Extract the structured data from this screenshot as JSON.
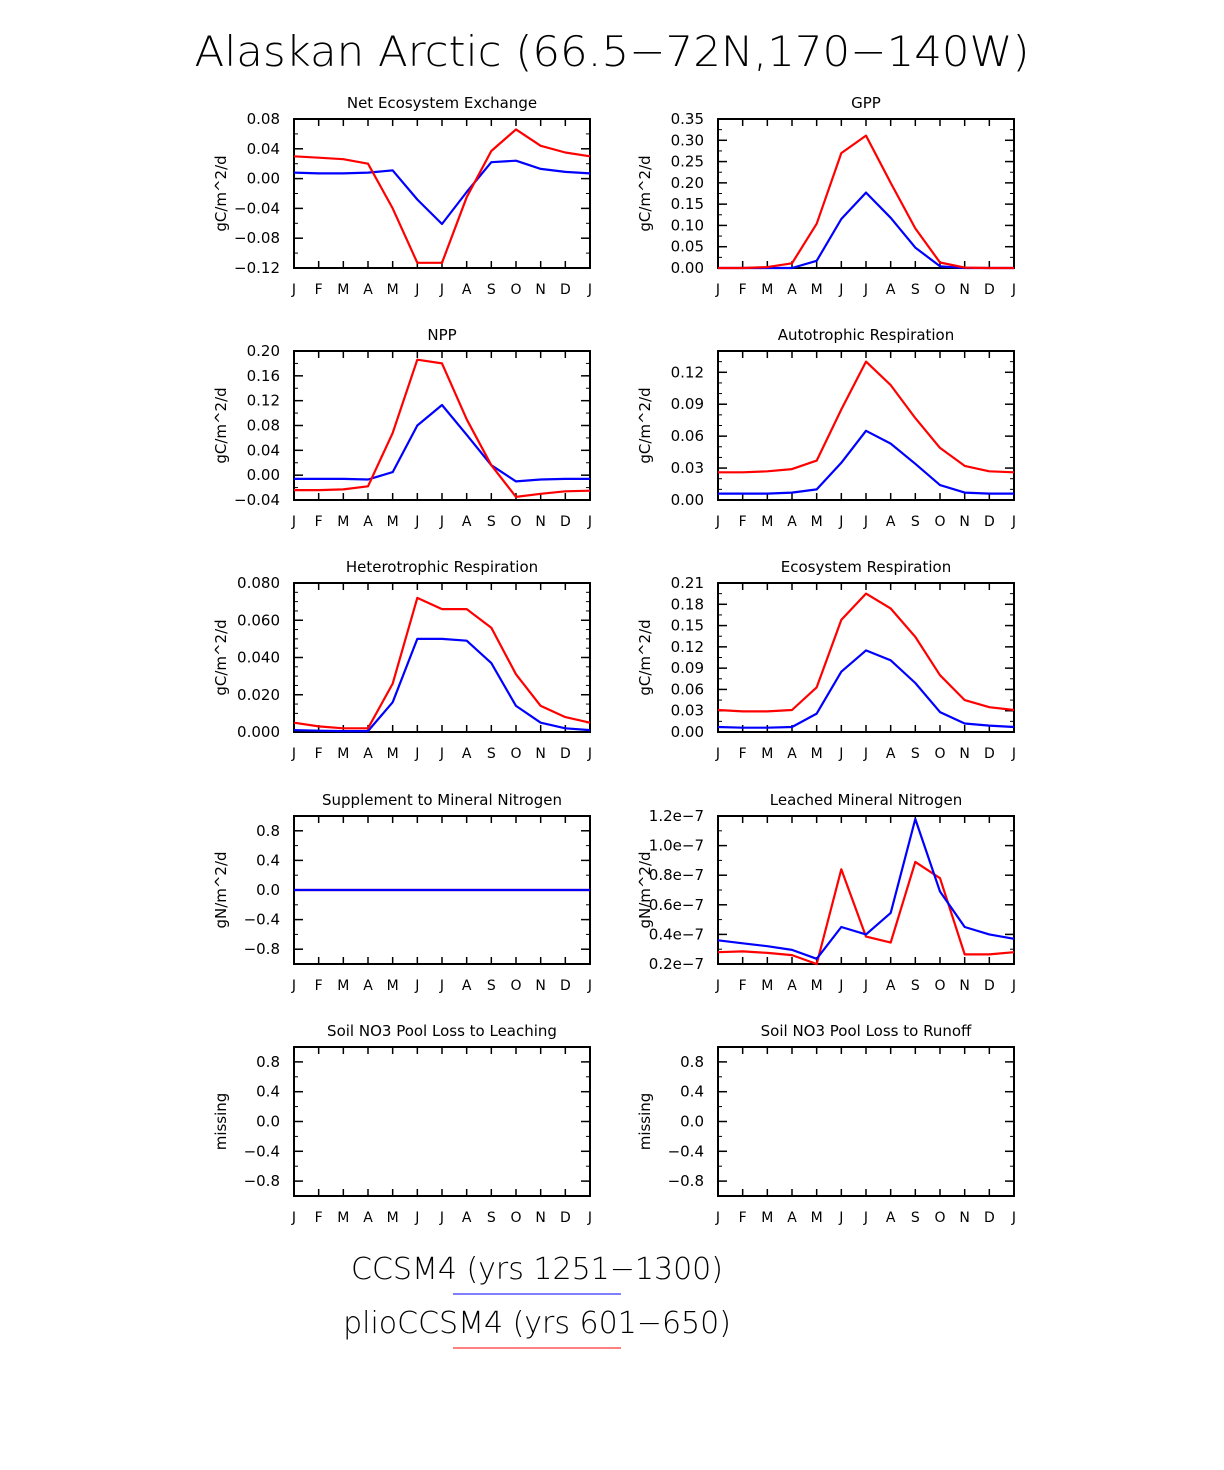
{
  "figure": {
    "title": "Alaskan Arctic (66.5−72N,170−140W)",
    "months": [
      "J",
      "F",
      "M",
      "A",
      "M",
      "J",
      "J",
      "A",
      "S",
      "O",
      "N",
      "D",
      "J"
    ],
    "legend": [
      {
        "label": "CCSM4 (yrs 1251−1300)",
        "color": "#0000ff"
      },
      {
        "label": "plioCCSM4 (yrs 601−650)",
        "color": "#ff0000"
      }
    ]
  },
  "chart_data": [
    {
      "type": "line",
      "title": "Net Ecosystem Exchange",
      "ylabel": "gC/m^2/d",
      "ylim": [
        -0.12,
        0.08
      ],
      "yticks": [
        -0.12,
        -0.08,
        -0.04,
        0.0,
        0.04,
        0.08
      ],
      "yticklabels": [
        "−0.12",
        "−0.08",
        "−0.04",
        "0.00",
        "0.04",
        "0.08"
      ],
      "minor_per_major": 1,
      "series": [
        {
          "color": "#0000ff",
          "values": [
            0.008,
            0.007,
            0.007,
            0.008,
            0.011,
            -0.028,
            -0.061,
            -0.018,
            0.022,
            0.024,
            0.013,
            0.009,
            0.007
          ]
        },
        {
          "color": "#ff0000",
          "values": [
            0.03,
            0.028,
            0.026,
            0.02,
            -0.04,
            -0.113,
            -0.113,
            -0.025,
            0.037,
            0.066,
            0.044,
            0.035,
            0.03
          ]
        }
      ]
    },
    {
      "type": "line",
      "title": "GPP",
      "ylabel": "gC/m^2/d",
      "ylim": [
        0,
        0.35
      ],
      "yticks": [
        0,
        0.05,
        0.1,
        0.15,
        0.2,
        0.25,
        0.3,
        0.35
      ],
      "yticklabels": [
        "0.00",
        "0.05",
        "0.10",
        "0.15",
        "0.20",
        "0.25",
        "0.30",
        "0.35"
      ],
      "minor_per_major": 1,
      "series": [
        {
          "color": "#0000ff",
          "values": [
            0,
            0,
            0,
            0.0,
            0.017,
            0.115,
            0.177,
            0.118,
            0.048,
            0.004,
            0,
            0,
            0
          ]
        },
        {
          "color": "#ff0000",
          "values": [
            0,
            0,
            0.002,
            0.011,
            0.104,
            0.27,
            0.311,
            0.2,
            0.093,
            0.013,
            0.001,
            0,
            0
          ]
        }
      ]
    },
    {
      "type": "line",
      "title": "NPP",
      "ylabel": "gC/m^2/d",
      "ylim": [
        -0.04,
        0.2
      ],
      "yticks": [
        -0.04,
        0.0,
        0.04,
        0.08,
        0.12,
        0.16,
        0.2
      ],
      "yticklabels": [
        "−0.04",
        "0.00",
        "0.04",
        "0.08",
        "0.12",
        "0.16",
        "0.20"
      ],
      "minor_per_major": 1,
      "series": [
        {
          "color": "#0000ff",
          "values": [
            -0.006,
            -0.006,
            -0.006,
            -0.007,
            0.005,
            0.08,
            0.113,
            0.065,
            0.016,
            -0.01,
            -0.007,
            -0.006,
            -0.006
          ]
        },
        {
          "color": "#ff0000",
          "values": [
            -0.024,
            -0.024,
            -0.023,
            -0.018,
            0.068,
            0.186,
            0.18,
            0.09,
            0.016,
            -0.035,
            -0.03,
            -0.026,
            -0.025
          ]
        }
      ]
    },
    {
      "type": "line",
      "title": "Autotrophic Respiration",
      "ylabel": "gC/m^2/d",
      "ylim": [
        0,
        0.14
      ],
      "yticks": [
        0,
        0.03,
        0.06,
        0.09,
        0.12
      ],
      "yticklabels": [
        "0.00",
        "0.03",
        "0.06",
        "0.09",
        "0.12"
      ],
      "minor_per_major": 2,
      "series": [
        {
          "color": "#0000ff",
          "values": [
            0.006,
            0.006,
            0.006,
            0.007,
            0.01,
            0.035,
            0.065,
            0.053,
            0.034,
            0.014,
            0.007,
            0.006,
            0.006
          ]
        },
        {
          "color": "#ff0000",
          "values": [
            0.026,
            0.026,
            0.027,
            0.029,
            0.037,
            0.085,
            0.13,
            0.108,
            0.077,
            0.049,
            0.032,
            0.027,
            0.026
          ]
        }
      ]
    },
    {
      "type": "line",
      "title": "Heterotrophic Respiration",
      "ylabel": "gC/m^2/d",
      "ylim": [
        0,
        0.08
      ],
      "yticks": [
        0,
        0.02,
        0.04,
        0.06,
        0.08
      ],
      "yticklabels": [
        "0.000",
        "0.020",
        "0.040",
        "0.060",
        "0.080"
      ],
      "minor_per_major": 3,
      "series": [
        {
          "color": "#0000ff",
          "values": [
            0.001,
            0.0007,
            0.0005,
            0.0005,
            0.016,
            0.05,
            0.05,
            0.049,
            0.037,
            0.014,
            0.005,
            0.002,
            0.001
          ]
        },
        {
          "color": "#ff0000",
          "values": [
            0.005,
            0.003,
            0.002,
            0.002,
            0.026,
            0.072,
            0.066,
            0.066,
            0.056,
            0.031,
            0.014,
            0.008,
            0.005
          ]
        }
      ]
    },
    {
      "type": "line",
      "title": "Ecosystem Respiration",
      "ylabel": "gC/m^2/d",
      "ylim": [
        0,
        0.21
      ],
      "yticks": [
        0,
        0.03,
        0.06,
        0.09,
        0.12,
        0.15,
        0.18,
        0.21
      ],
      "yticklabels": [
        "0.00",
        "0.03",
        "0.06",
        "0.09",
        "0.12",
        "0.15",
        "0.18",
        "0.21"
      ],
      "minor_per_major": 1,
      "series": [
        {
          "color": "#0000ff",
          "values": [
            0.007,
            0.006,
            0.006,
            0.007,
            0.026,
            0.085,
            0.115,
            0.101,
            0.069,
            0.028,
            0.012,
            0.009,
            0.007
          ]
        },
        {
          "color": "#ff0000",
          "values": [
            0.031,
            0.029,
            0.029,
            0.031,
            0.063,
            0.158,
            0.195,
            0.174,
            0.134,
            0.08,
            0.045,
            0.035,
            0.031
          ]
        }
      ]
    },
    {
      "type": "line",
      "title": "Supplement to Mineral Nitrogen",
      "ylabel": "gN/m^2/d",
      "ylim": [
        -1,
        1
      ],
      "yticks": [
        -0.8,
        -0.4,
        0.0,
        0.4,
        0.8
      ],
      "yticklabels": [
        "−0.8",
        "−0.4",
        "0.0",
        "0.4",
        "0.8"
      ],
      "minor_per_major": 1,
      "series": [
        {
          "color": "#ff0000",
          "values": [
            0,
            0,
            0,
            0,
            0,
            0,
            0,
            0,
            0,
            0,
            0,
            0,
            0
          ]
        },
        {
          "color": "#0000ff",
          "values": [
            0,
            0,
            0,
            0,
            0,
            0,
            0,
            0,
            0,
            0,
            0,
            0,
            0
          ]
        }
      ]
    },
    {
      "type": "line",
      "title": "Leached Mineral Nitrogen",
      "ylabel": "gN/m^2/d",
      "ylim": [
        2e-08,
        1.2e-07
      ],
      "yticks": [
        2e-08,
        4e-08,
        6e-08,
        8e-08,
        1e-07,
        1.2e-07
      ],
      "yticklabels": [
        "0.2e−7",
        "0.4e−7",
        "0.6e−7",
        "0.8e−7",
        "1.0e−7",
        "1.2e−7"
      ],
      "minor_per_major": 1,
      "series": [
        {
          "color": "#ff0000",
          "values": [
            2.8e-08,
            2.85e-08,
            2.75e-08,
            2.6e-08,
            2e-08,
            8.4e-08,
            3.85e-08,
            3.45e-08,
            8.9e-08,
            7.8e-08,
            2.65e-08,
            2.65e-08,
            2.8e-08
          ]
        },
        {
          "color": "#0000ff",
          "values": [
            3.6e-08,
            3.4e-08,
            3.2e-08,
            2.95e-08,
            2.35e-08,
            4.5e-08,
            4e-08,
            5.45e-08,
            1.18e-07,
            6.9e-08,
            4.5e-08,
            4e-08,
            3.7e-08
          ]
        }
      ]
    },
    {
      "type": "line",
      "title": "Soil NO3 Pool Loss to Leaching",
      "ylabel": "missing",
      "ylim": [
        -1,
        1
      ],
      "yticks": [
        -0.8,
        -0.4,
        0.0,
        0.4,
        0.8
      ],
      "yticklabels": [
        "−0.8",
        "−0.4",
        "0.0",
        "0.4",
        "0.8"
      ],
      "minor_per_major": 1,
      "series": []
    },
    {
      "type": "line",
      "title": "Soil NO3 Pool Loss to Runoff",
      "ylabel": "missing",
      "ylim": [
        -1,
        1
      ],
      "yticks": [
        -0.8,
        -0.4,
        0.0,
        0.4,
        0.8
      ],
      "yticklabels": [
        "−0.8",
        "−0.4",
        "0.0",
        "0.4",
        "0.8"
      ],
      "minor_per_major": 1,
      "series": []
    }
  ]
}
